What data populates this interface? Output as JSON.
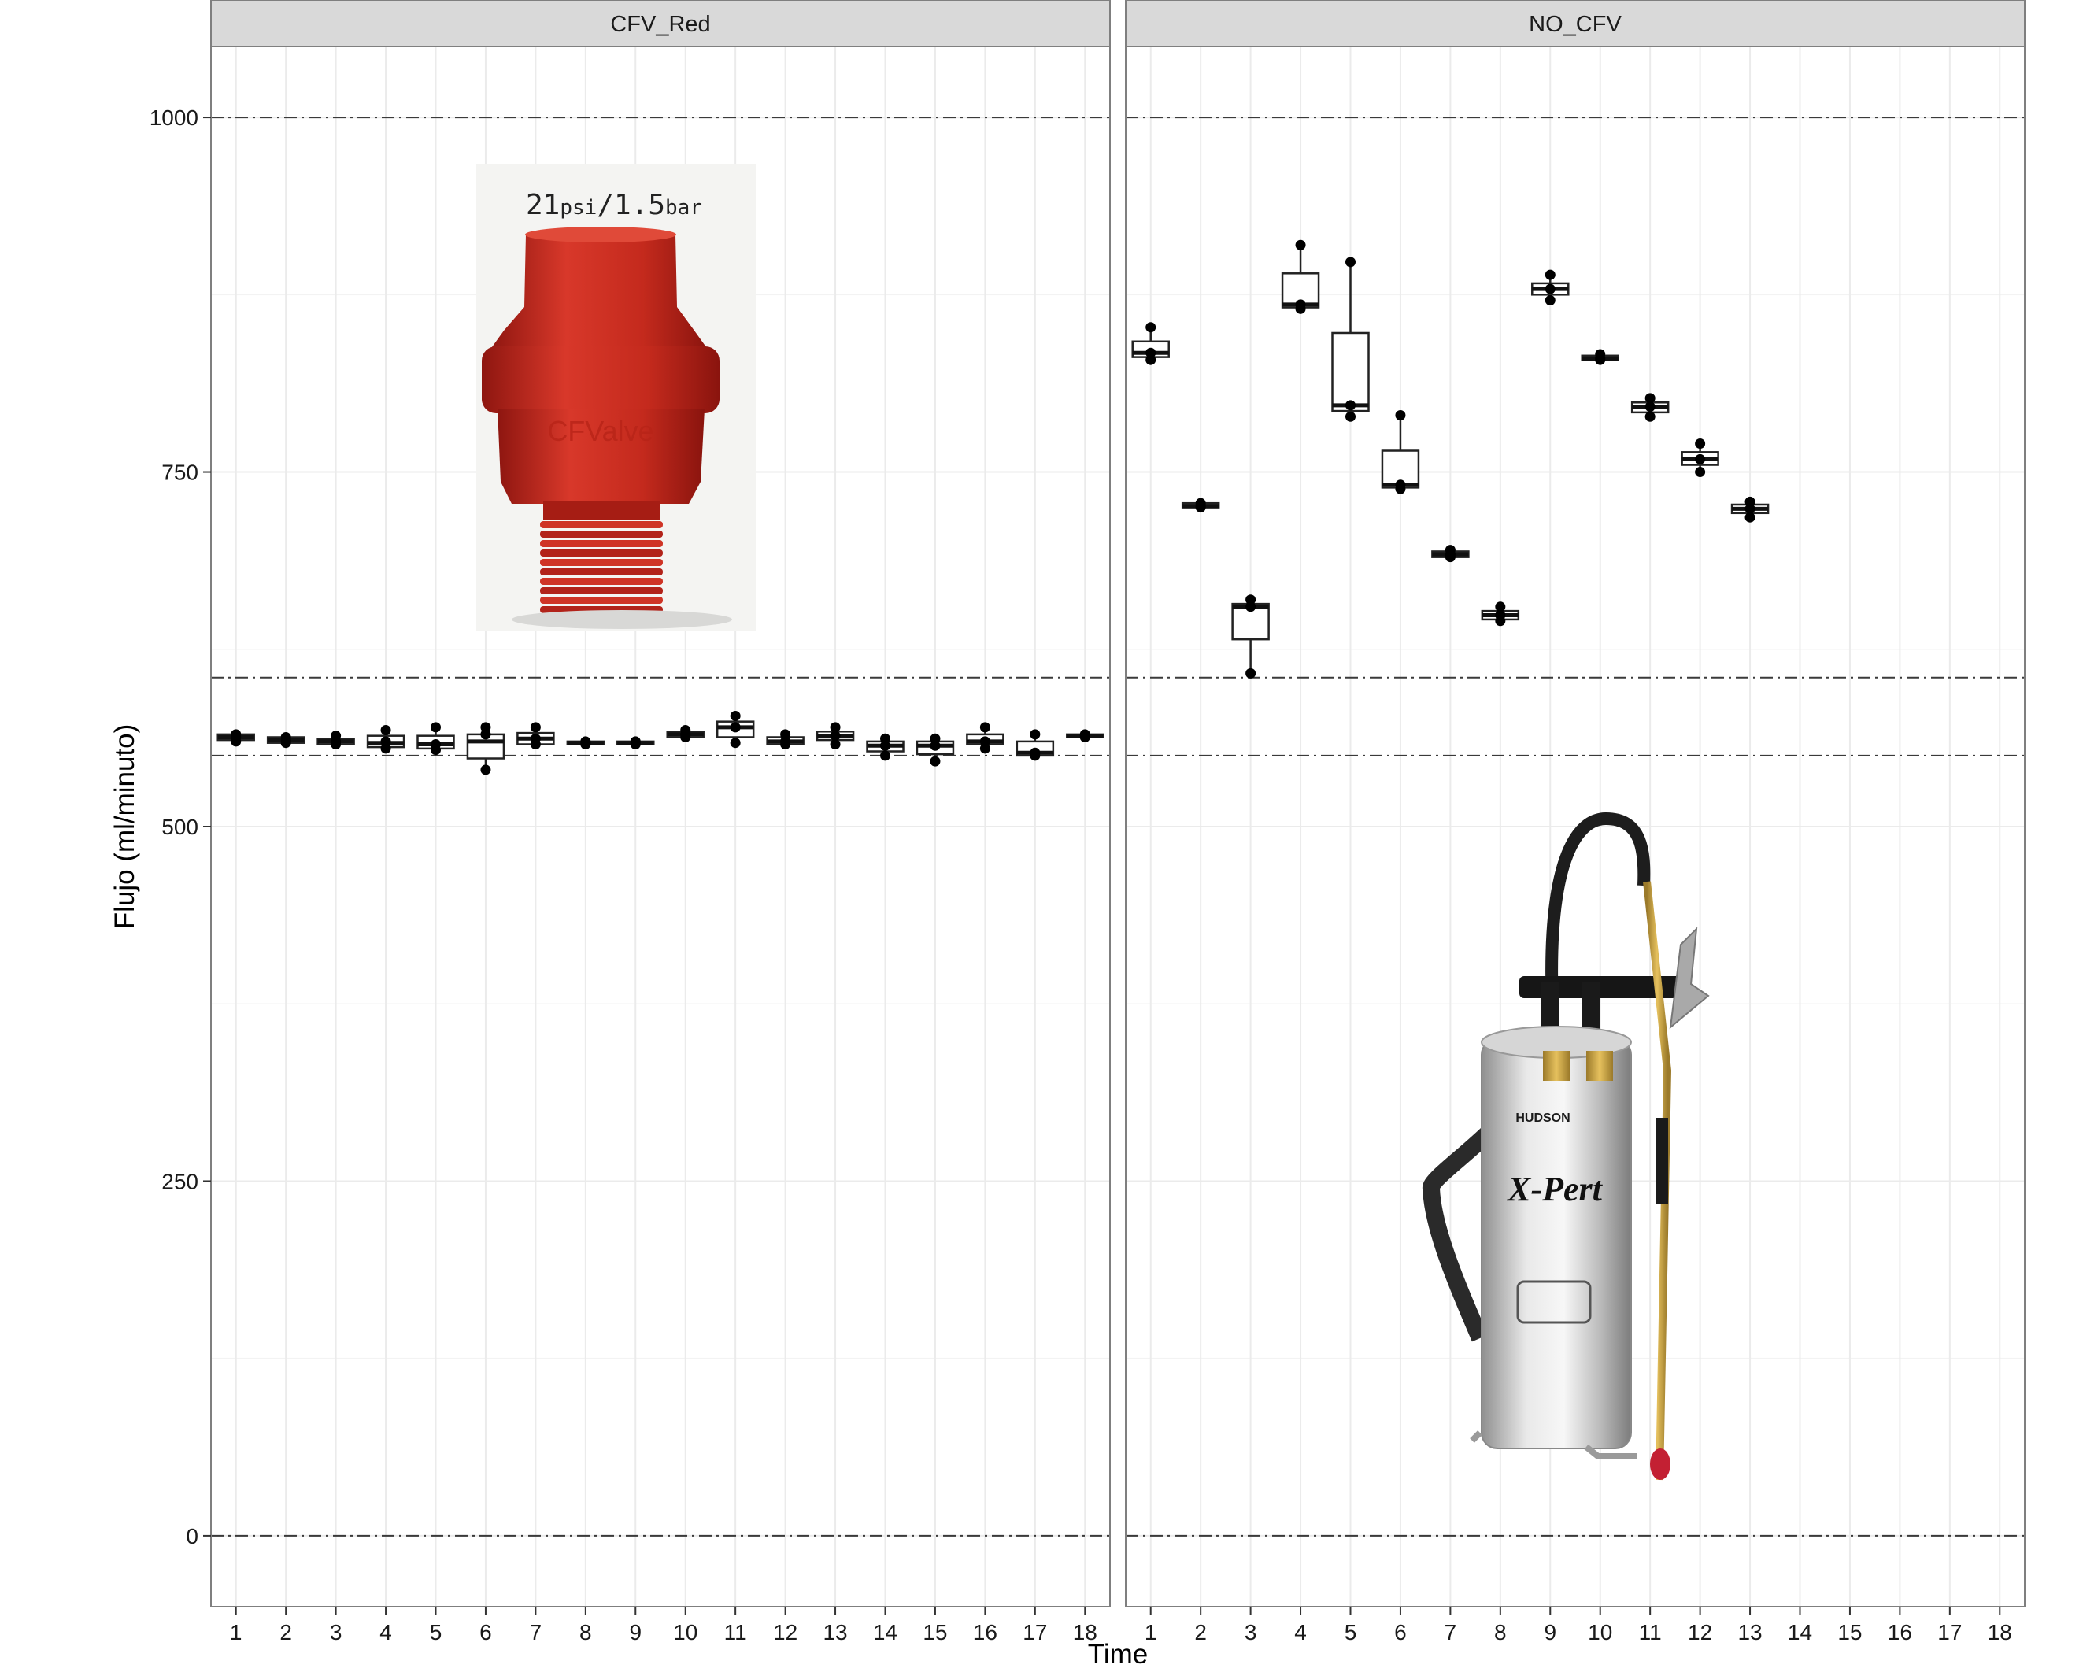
{
  "chart_data": {
    "type": "boxplot",
    "xlabel": "Time",
    "ylabel": "Flujo (ml/minuto)",
    "ylim": [
      -50,
      1050
    ],
    "yticks": [
      0,
      250,
      500,
      750,
      1000
    ],
    "xcategories": [
      1,
      2,
      3,
      4,
      5,
      6,
      7,
      8,
      9,
      10,
      11,
      12,
      13,
      14,
      15,
      16,
      17,
      18
    ],
    "reference_lines": [
      0,
      550,
      605,
      1000
    ],
    "grid": true,
    "panels": [
      {
        "name": "CFV_Red",
        "boxes": [
          {
            "x": 1,
            "q1": 561,
            "median": 563,
            "q3": 565,
            "whisker_low": 560,
            "whisker_high": 566,
            "points": [
              560,
              563,
              565
            ]
          },
          {
            "x": 2,
            "q1": 559,
            "median": 561,
            "q3": 563,
            "whisker_low": 558,
            "whisker_high": 564,
            "points": [
              559,
              561,
              563
            ]
          },
          {
            "x": 3,
            "q1": 558,
            "median": 560,
            "q3": 562,
            "whisker_low": 557,
            "whisker_high": 564,
            "points": [
              558,
              560,
              564
            ]
          },
          {
            "x": 4,
            "q1": 556,
            "median": 559,
            "q3": 564,
            "whisker_low": 555,
            "whisker_high": 568,
            "points": [
              555,
              560,
              568
            ]
          },
          {
            "x": 5,
            "q1": 555,
            "median": 558,
            "q3": 564,
            "whisker_low": 554,
            "whisker_high": 570,
            "points": [
              554,
              558,
              570
            ]
          },
          {
            "x": 6,
            "q1": 548,
            "median": 560,
            "q3": 565,
            "whisker_low": 540,
            "whisker_high": 570,
            "points": [
              540,
              565,
              570
            ]
          },
          {
            "x": 7,
            "q1": 558,
            "median": 562,
            "q3": 566,
            "whisker_low": 558,
            "whisker_high": 570,
            "points": [
              558,
              562,
              570
            ]
          },
          {
            "x": 8,
            "q1": 558,
            "median": 559,
            "q3": 560,
            "whisker_low": 558,
            "whisker_high": 561,
            "points": [
              558,
              559,
              560
            ]
          },
          {
            "x": 9,
            "q1": 558,
            "median": 559,
            "q3": 560,
            "whisker_low": 558,
            "whisker_high": 560,
            "points": [
              558,
              559,
              560
            ]
          },
          {
            "x": 10,
            "q1": 563,
            "median": 565,
            "q3": 567,
            "whisker_low": 562,
            "whisker_high": 568,
            "points": [
              563,
              565,
              568
            ]
          },
          {
            "x": 11,
            "q1": 563,
            "median": 570,
            "q3": 574,
            "whisker_low": 559,
            "whisker_high": 578,
            "points": [
              559,
              570,
              578
            ]
          },
          {
            "x": 12,
            "q1": 558,
            "median": 560,
            "q3": 563,
            "whisker_low": 557,
            "whisker_high": 565,
            "points": [
              558,
              560,
              565
            ]
          },
          {
            "x": 13,
            "q1": 561,
            "median": 564,
            "q3": 567,
            "whisker_low": 558,
            "whisker_high": 570,
            "points": [
              558,
              564,
              570
            ]
          },
          {
            "x": 14,
            "q1": 553,
            "median": 557,
            "q3": 560,
            "whisker_low": 550,
            "whisker_high": 562,
            "points": [
              550,
              557,
              562
            ]
          },
          {
            "x": 15,
            "q1": 551,
            "median": 557,
            "q3": 560,
            "whisker_low": 546,
            "whisker_high": 562,
            "points": [
              546,
              557,
              562
            ]
          },
          {
            "x": 16,
            "q1": 558,
            "median": 560,
            "q3": 565,
            "whisker_low": 555,
            "whisker_high": 570,
            "points": [
              555,
              560,
              570
            ]
          },
          {
            "x": 17,
            "q1": 550,
            "median": 552,
            "q3": 560,
            "whisker_low": 550,
            "whisker_high": 565,
            "points": [
              550,
              552,
              565
            ]
          },
          {
            "x": 18,
            "q1": 563,
            "median": 564,
            "q3": 565,
            "whisker_low": 563,
            "whisker_high": 565,
            "points": [
              563,
              564,
              565
            ]
          }
        ]
      },
      {
        "name": "NO_CFV",
        "boxes": [
          {
            "x": 1,
            "q1": 831,
            "median": 834,
            "q3": 842,
            "whisker_low": 829,
            "whisker_high": 852,
            "points": [
              829,
              834,
              852
            ]
          },
          {
            "x": 2,
            "q1": 725,
            "median": 726,
            "q3": 728,
            "whisker_low": 724,
            "whisker_high": 728,
            "points": [
              725,
              726,
              728
            ]
          },
          {
            "x": 3,
            "q1": 632,
            "median": 655,
            "q3": 657,
            "whisker_low": 608,
            "whisker_high": 660,
            "points": [
              608,
              655,
              660
            ]
          },
          {
            "x": 4,
            "q1": 866,
            "median": 868,
            "q3": 890,
            "whisker_low": 865,
            "whisker_high": 910,
            "points": [
              865,
              868,
              910
            ]
          },
          {
            "x": 5,
            "q1": 793,
            "median": 797,
            "q3": 848,
            "whisker_low": 789,
            "whisker_high": 898,
            "points": [
              789,
              797,
              898
            ]
          },
          {
            "x": 6,
            "q1": 739,
            "median": 741,
            "q3": 765,
            "whisker_low": 738,
            "whisker_high": 790,
            "points": [
              738,
              741,
              790
            ]
          },
          {
            "x": 7,
            "q1": 690,
            "median": 692,
            "q3": 694,
            "whisker_low": 689,
            "whisker_high": 695,
            "points": [
              690,
              692,
              695
            ]
          },
          {
            "x": 8,
            "q1": 646,
            "median": 649,
            "q3": 652,
            "whisker_low": 645,
            "whisker_high": 655,
            "points": [
              645,
              649,
              655
            ]
          },
          {
            "x": 9,
            "q1": 875,
            "median": 879,
            "q3": 883,
            "whisker_low": 871,
            "whisker_high": 889,
            "points": [
              871,
              879,
              889
            ]
          },
          {
            "x": 10,
            "q1": 829,
            "median": 830,
            "q3": 832,
            "whisker_low": 828,
            "whisker_high": 833,
            "points": [
              829,
              830,
              833
            ]
          },
          {
            "x": 11,
            "q1": 792,
            "median": 796,
            "q3": 799,
            "whisker_low": 789,
            "whisker_high": 802,
            "points": [
              789,
              796,
              802
            ]
          },
          {
            "x": 12,
            "q1": 755,
            "median": 759,
            "q3": 764,
            "whisker_low": 750,
            "whisker_high": 770,
            "points": [
              750,
              759,
              770
            ]
          },
          {
            "x": 13,
            "q1": 721,
            "median": 724,
            "q3": 727,
            "whisker_low": 718,
            "whisker_high": 729,
            "points": [
              718,
              724,
              729
            ]
          }
        ]
      }
    ]
  },
  "photos": {
    "valve_label_main": "21",
    "valve_label_psi": "psi",
    "valve_label_sep": "/1.5",
    "valve_label_bar": "bar",
    "valve_brand": "CFValve",
    "sprayer_brand": "HUDSON",
    "sprayer_model": "X-Pert",
    "colors": {
      "valve": "#c8281e",
      "sprayer_body": "#c9c9c9"
    }
  }
}
